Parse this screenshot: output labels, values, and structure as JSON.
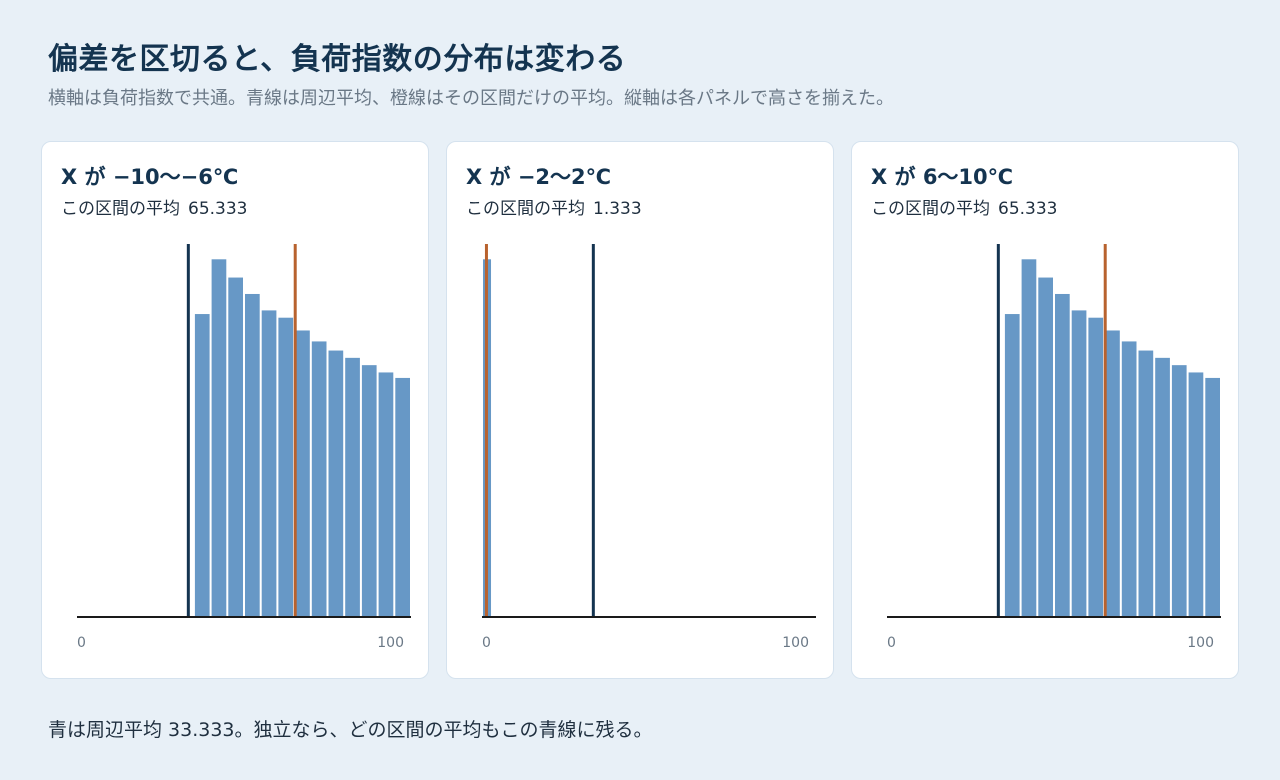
{
  "header": {
    "title": "偏差を区切ると、負荷指数の分布は変わる",
    "subtitle": "横軸は負荷指数で共通。青線は周辺平均、橙線はその区間だけの平均。縦軸は各パネルで高さを揃えた。"
  },
  "footer": {
    "note": "青は周辺平均 33.333。独立なら、どの区間の平均もこの青線に残る。"
  },
  "colors": {
    "bar": "#6798c6",
    "marginal_mean_line": "#143450",
    "conditional_mean_line": "#b8622e",
    "axis": "#1a1a1a"
  },
  "chart_data": [
    {
      "type": "bar",
      "title": "X が −10〜−6℃",
      "mean_label": "この区間の平均",
      "mean_value": "65.333",
      "xlim": [
        0,
        100
      ],
      "x_ticks": [
        "0",
        "100"
      ],
      "bins": [
        [
          35,
          40
        ],
        [
          40,
          45
        ],
        [
          45,
          50
        ],
        [
          50,
          55
        ],
        [
          55,
          60
        ],
        [
          60,
          65
        ],
        [
          65,
          70
        ],
        [
          70,
          75
        ],
        [
          75,
          80
        ],
        [
          80,
          85
        ],
        [
          85,
          90
        ],
        [
          90,
          95
        ],
        [
          95,
          100
        ]
      ],
      "values": [
        0.83,
        0.98,
        0.93,
        0.885,
        0.84,
        0.82,
        0.785,
        0.755,
        0.73,
        0.71,
        0.69,
        0.67,
        0.655
      ],
      "ylim": [
        0,
        1
      ],
      "marginal_mean": 33.333,
      "conditional_mean": 65.333
    },
    {
      "type": "bar",
      "title": "X が −2〜2℃",
      "mean_label": "この区間の平均",
      "mean_value": "1.333",
      "xlim": [
        0,
        100
      ],
      "x_ticks": [
        "0",
        "100"
      ],
      "bins": [
        [
          0,
          3
        ]
      ],
      "values": [
        0.98
      ],
      "ylim": [
        0,
        1
      ],
      "marginal_mean": 33.333,
      "conditional_mean": 1.333
    },
    {
      "type": "bar",
      "title": "X が 6〜10℃",
      "mean_label": "この区間の平均",
      "mean_value": "65.333",
      "xlim": [
        0,
        100
      ],
      "x_ticks": [
        "0",
        "100"
      ],
      "bins": [
        [
          35,
          40
        ],
        [
          40,
          45
        ],
        [
          45,
          50
        ],
        [
          50,
          55
        ],
        [
          55,
          60
        ],
        [
          60,
          65
        ],
        [
          65,
          70
        ],
        [
          70,
          75
        ],
        [
          75,
          80
        ],
        [
          80,
          85
        ],
        [
          85,
          90
        ],
        [
          90,
          95
        ],
        [
          95,
          100
        ]
      ],
      "values": [
        0.83,
        0.98,
        0.93,
        0.885,
        0.84,
        0.82,
        0.785,
        0.755,
        0.73,
        0.71,
        0.69,
        0.67,
        0.655
      ],
      "ylim": [
        0,
        1
      ],
      "marginal_mean": 33.333,
      "conditional_mean": 65.333
    }
  ]
}
